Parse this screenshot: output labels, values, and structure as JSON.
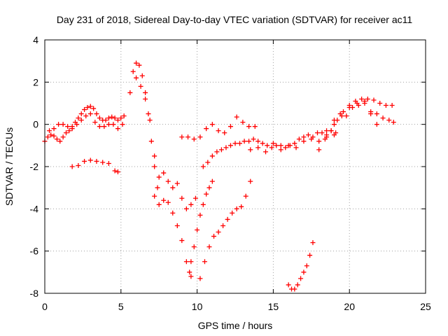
{
  "chart_data": {
    "type": "scatter",
    "title": "Day 231 of 2018, Sidereal Day-to-day VTEC variation (SDTVAR) for receiver ac11",
    "xlabel": "GPS time / hours",
    "ylabel": "SDTVAR / TECUs",
    "xlim": [
      0,
      25
    ],
    "ylim": [
      -8,
      4
    ],
    "xticks": [
      0,
      5,
      10,
      15,
      20,
      25
    ],
    "yticks": [
      -8,
      -6,
      -4,
      -2,
      0,
      2,
      4
    ],
    "grid": true,
    "marker": "plus",
    "color": "#ff0000",
    "series": [
      {
        "x": [
          0,
          0.2,
          0.4,
          0.6,
          0.8,
          1.0,
          1.2,
          1.4,
          1.6,
          1.8,
          2.0,
          2.2,
          2.4,
          2.6,
          2.8,
          3.0,
          3.2,
          3.4,
          3.6,
          3.8,
          4.0,
          4.2,
          4.4,
          4.6,
          4.8,
          5.0,
          5.2
        ],
        "y": [
          -0.8,
          -0.6,
          -0.5,
          -0.55,
          -0.7,
          -0.8,
          -0.6,
          -0.4,
          -0.3,
          -0.1,
          0.1,
          0.3,
          0.5,
          0.7,
          0.8,
          0.85,
          0.75,
          0.5,
          0.3,
          0.2,
          0.2,
          0.3,
          0.35,
          0.3,
          0.2,
          0.3,
          0.4
        ]
      },
      {
        "x": [
          0.3,
          0.6,
          0.9,
          1.2,
          1.5,
          1.8,
          2.1,
          2.4,
          2.7,
          3.0,
          3.3,
          3.6,
          3.9,
          4.2,
          4.5,
          4.8,
          5.1
        ],
        "y": [
          -0.3,
          -0.2,
          0,
          0,
          -0.1,
          -0.2,
          0,
          0.2,
          0.4,
          0.5,
          0.1,
          -0.1,
          -0.1,
          0,
          0,
          -0.2,
          0
        ]
      },
      {
        "x": [
          1.8,
          2.2,
          2.6,
          3.0,
          3.4,
          3.8,
          4.2,
          4.6,
          4.8
        ],
        "y": [
          -2.0,
          -1.95,
          -1.75,
          -1.7,
          -1.75,
          -1.8,
          -1.85,
          -2.2,
          -2.25
        ]
      },
      {
        "x": [
          5.6,
          5.8,
          6.0,
          6.2,
          6.4,
          6.6,
          6.8,
          7.0,
          7.2,
          7.4
        ],
        "y": [
          1.5,
          2.5,
          2.9,
          2.8,
          2.3,
          1.5,
          0.5,
          -0.8,
          -2.0,
          -3.0
        ]
      },
      {
        "x": [
          6.0,
          6.3,
          6.6,
          6.9,
          7.2,
          7.5,
          7.8,
          8.1,
          8.4,
          8.7,
          9.0,
          9.3,
          9.6,
          9.9
        ],
        "y": [
          2.2,
          1.8,
          1.2,
          0.2,
          -1.5,
          -2.5,
          -2.3,
          -2.7,
          -3.0,
          -2.8,
          -3.5,
          -4.0,
          -3.8,
          -3.5
        ]
      },
      {
        "x": [
          7.2,
          7.5,
          7.8,
          8.1,
          8.4,
          8.7,
          9.0,
          9.3,
          9.5,
          9.6
        ],
        "y": [
          -3.4,
          -3.8,
          -3.6,
          -3.7,
          -4.2,
          -4.8,
          -5.5,
          -6.5,
          -7.0,
          -7.2
        ]
      },
      {
        "x": [
          9.0,
          9.4,
          9.8,
          10.2,
          10.6,
          11.0,
          11.4,
          11.8,
          12.2,
          12.6,
          13.0,
          13.4,
          13.8
        ],
        "y": [
          -0.6,
          -0.6,
          -0.7,
          -0.6,
          -0.2,
          0.0,
          -0.3,
          -0.4,
          -0.1,
          0.35,
          0.1,
          -0.1,
          -0.1
        ]
      },
      {
        "x": [
          9.6,
          9.8,
          10.0,
          10.2,
          10.4,
          10.6,
          10.8,
          11.0
        ],
        "y": [
          -6.5,
          -5.8,
          -5.0,
          -4.3,
          -3.8,
          -3.3,
          -3.0,
          -2.7
        ]
      },
      {
        "x": [
          10.2,
          10.5,
          10.8,
          11.1,
          11.4,
          11.7,
          12.0,
          12.3,
          12.6,
          12.9,
          13.2,
          13.5
        ],
        "y": [
          -7.3,
          -6.5,
          -5.8,
          -5.3,
          -5.1,
          -4.8,
          -4.5,
          -4.2,
          -4.0,
          -3.9,
          -3.4,
          -2.7
        ]
      },
      {
        "x": [
          10.4,
          10.7,
          11.0,
          11.3,
          11.6,
          11.9,
          12.2,
          12.5,
          12.8,
          13.1,
          13.4,
          13.7,
          14.0,
          14.3,
          14.6,
          14.9,
          15.2,
          15.5,
          15.8,
          16.1,
          16.4,
          16.7,
          17.0,
          17.3,
          17.6,
          17.9,
          18.2,
          18.5,
          18.8,
          19.1
        ],
        "y": [
          -2.0,
          -1.8,
          -1.5,
          -1.3,
          -1.2,
          -1.1,
          -1.0,
          -0.9,
          -0.9,
          -0.8,
          -0.8,
          -0.7,
          -0.8,
          -0.9,
          -1.0,
          -1.1,
          -1.0,
          -1.0,
          -1.1,
          -1.0,
          -0.9,
          -0.7,
          -0.6,
          -0.5,
          -0.6,
          -0.4,
          -0.4,
          -0.5,
          -0.3,
          -0.4
        ]
      },
      {
        "x": [
          13.5,
          14.0,
          14.5,
          15.0,
          15.5,
          16.0,
          16.5,
          17.0,
          17.5,
          18.0,
          18.5,
          19.0
        ],
        "y": [
          -1.2,
          -1.1,
          -1.3,
          -0.9,
          -1.2,
          -1.0,
          -1.1,
          -0.8,
          -0.7,
          -0.8,
          -0.6,
          -0.5
        ]
      },
      {
        "x": [
          16.0,
          16.2,
          16.4,
          16.6,
          16.8,
          17.0,
          17.2,
          17.4,
          17.6
        ],
        "y": [
          -7.6,
          -7.8,
          -7.8,
          -7.6,
          -7.3,
          -7.0,
          -6.7,
          -6.2,
          -5.6
        ]
      },
      {
        "x": [
          18.0,
          18.4,
          18.8,
          19.2,
          19.6,
          20.0,
          20.4,
          20.8,
          21.2,
          21.6,
          22.0,
          22.4,
          22.8
        ],
        "y": [
          -1.2,
          -0.7,
          -0.3,
          0.2,
          0.6,
          0.9,
          1.1,
          1.2,
          1.2,
          1.15,
          1.0,
          0.9,
          0.9
        ]
      },
      {
        "x": [
          19.0,
          19.4,
          19.8,
          20.2,
          20.6,
          21.0,
          21.4,
          21.8,
          22.2,
          22.6,
          22.9
        ],
        "y": [
          0.2,
          0.5,
          0.4,
          0.8,
          0.9,
          1.0,
          0.6,
          0.5,
          0.3,
          0.2,
          0.1
        ]
      },
      {
        "x": [
          18.5,
          19.0,
          19.5,
          20.0,
          20.5,
          21.0,
          21.4,
          21.8
        ],
        "y": [
          -0.3,
          0.0,
          0.4,
          0.8,
          1.0,
          1.1,
          0.5,
          0.0
        ]
      }
    ]
  }
}
